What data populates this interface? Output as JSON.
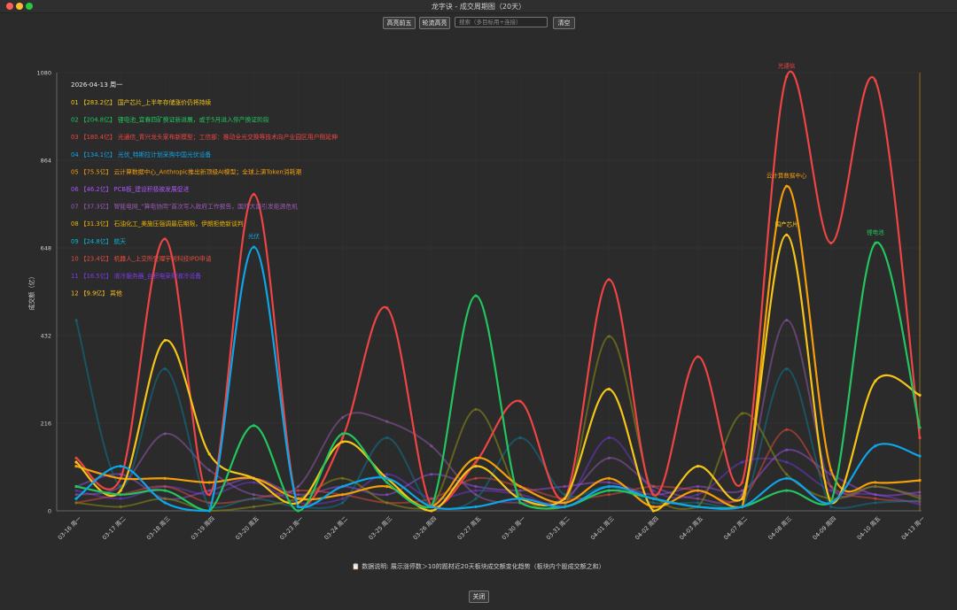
{
  "window": {
    "title": "龙字诀 - 成交周期图（20天）"
  },
  "toolbar": {
    "btn_top5": "高亮前五",
    "btn_cycle": "轮流高亮",
    "search_placeholder": "搜索（多目标用+连接）",
    "btn_clear": "清空"
  },
  "footer": {
    "icon": "📋",
    "note": "数据说明: 展示涨停数＞10的题材近20天板块成交额变化趋势（板块内个股成交额之和）",
    "close": "关闭"
  },
  "chart_data": {
    "type": "line",
    "ylabel": "成交额（亿）",
    "ylim": [
      0,
      1080
    ],
    "yticks": [
      0,
      216,
      432,
      648,
      864,
      1080
    ],
    "x": [
      "03-16 周一",
      "03-17 周二",
      "03-18 周三",
      "03-19 周四",
      "03-20 周五",
      "03-23 周一",
      "03-24 周二",
      "03-25 周三",
      "03-26 周四",
      "03-27 周五",
      "03-30 周一",
      "03-31 周二",
      "04-01 周三",
      "04-02 周四",
      "04-03 周五",
      "04-07 周二",
      "04-08 周三",
      "04-09 周四",
      "04-10 周五",
      "04-13 周一"
    ],
    "tooltip": {
      "date": "2026-04-13 周一",
      "items": [
        {
          "rank": "01",
          "amount": "【283.2亿】",
          "text": "国产芯片_上半年存储涨价仍将持续",
          "color": "#f5c518"
        },
        {
          "rank": "02",
          "amount": "【204.8亿】",
          "text": "锂电池_宜春四矿换证新进展，或于5月进入停产换证阶段",
          "color": "#22c55e"
        },
        {
          "rank": "03",
          "amount": "【180.4亿】",
          "text": "光通信_青兴龙头家布新模型；工信部：推动全光交换等技术向产业园区用户侧延伸",
          "color": "#ef4444"
        },
        {
          "rank": "04",
          "amount": "【134.1亿】",
          "text": "光伏_特斯拉计划采购中国光伏设备",
          "color": "#0ea5e9"
        },
        {
          "rank": "05",
          "amount": "【75.5亿】",
          "text": "云计算数据中心_Anthropic推出新顶级AI模型；全球上演Token消耗潮",
          "color": "#f59e0b"
        },
        {
          "rank": "06",
          "amount": "【46.2亿】",
          "text": "PCB板_建设积极被发展促进",
          "color": "#a855f7"
        },
        {
          "rank": "07",
          "amount": "【37.3亿】",
          "text": "智能电网_“算电协同”首次写入政府工作报告，国外大面引发能源危机",
          "color": "#9b59b6"
        },
        {
          "rank": "08",
          "amount": "【31.3亿】",
          "text": "石油化工_美施压强调最后期限，伊朗拒绝新谈判",
          "color": "#eab308"
        },
        {
          "rank": "09",
          "amount": "【24.8亿】",
          "text": "航天",
          "color": "#06b6d4"
        },
        {
          "rank": "10",
          "amount": "【23.4亿】",
          "text": "机器人_上交所受理宇树科技IPO申请",
          "color": "#e74c3c"
        },
        {
          "rank": "11",
          "amount": "【16.5亿】",
          "text": "液冷服务器_台积电采购液冷设备",
          "color": "#7c3aed"
        },
        {
          "rank": "12",
          "amount": "【9.9亿】",
          "text": "其他",
          "color": "#fbbf24"
        }
      ]
    },
    "series": [
      {
        "name": "光通信",
        "color": "#ef4444",
        "width": 2.2,
        "opacity": 1,
        "values": [
          130,
          80,
          670,
          40,
          780,
          10,
          180,
          500,
          10,
          120,
          270,
          30,
          570,
          40,
          380,
          70,
          1070,
          660,
          1060,
          180
        ],
        "label_at": 16
      },
      {
        "name": "云计算数据中心",
        "color": "#f59e0b",
        "width": 2.2,
        "opacity": 1,
        "values": [
          110,
          80,
          80,
          70,
          80,
          30,
          40,
          60,
          10,
          130,
          60,
          20,
          80,
          10,
          50,
          10,
          800,
          100,
          70,
          75
        ],
        "label_at": 16
      },
      {
        "name": "国产芯片",
        "color": "#f5c518",
        "width": 2.2,
        "opacity": 1,
        "values": [
          120,
          50,
          420,
          140,
          80,
          20,
          170,
          80,
          0,
          110,
          30,
          30,
          300,
          0,
          110,
          30,
          680,
          20,
          320,
          285
        ],
        "label_at": 16
      },
      {
        "name": "锂电池",
        "color": "#22c55e",
        "width": 2.2,
        "opacity": 1,
        "values": [
          60,
          40,
          50,
          0,
          210,
          0,
          190,
          70,
          10,
          530,
          20,
          10,
          50,
          30,
          10,
          10,
          50,
          20,
          660,
          205
        ],
        "label_at": 18
      },
      {
        "name": "光伏",
        "color": "#0ea5e9",
        "width": 2.2,
        "opacity": 1,
        "values": [
          30,
          110,
          20,
          0,
          650,
          10,
          60,
          80,
          10,
          10,
          30,
          10,
          60,
          30,
          10,
          10,
          80,
          20,
          160,
          135
        ],
        "label_at": 4
      },
      {
        "name": "",
        "color": "#7a7a1a",
        "width": 2,
        "opacity": 0.7,
        "values": [
          20,
          10,
          30,
          0,
          10,
          30,
          80,
          20,
          10,
          250,
          40,
          10,
          430,
          40,
          10,
          240,
          90,
          30,
          60,
          31
        ],
        "label_at": 12
      },
      {
        "name": "",
        "color": "#0e7490",
        "width": 2,
        "opacity": 0.55,
        "values": [
          470,
          60,
          350,
          10,
          30,
          10,
          20,
          180,
          10,
          30,
          180,
          40,
          60,
          20,
          20,
          10,
          350,
          10,
          20,
          25
        ],
        "label_at": -1
      },
      {
        "name": "",
        "color": "#9b59b6",
        "width": 2,
        "opacity": 0.5,
        "values": [
          40,
          60,
          190,
          100,
          40,
          60,
          230,
          220,
          160,
          40,
          20,
          30,
          130,
          60,
          30,
          40,
          470,
          60,
          60,
          37
        ],
        "label_at": 16
      },
      {
        "name": "",
        "color": "#7c3aed",
        "width": 2,
        "opacity": 0.45,
        "values": [
          50,
          30,
          60,
          40,
          70,
          20,
          30,
          90,
          30,
          50,
          40,
          20,
          180,
          50,
          40,
          120,
          120,
          50,
          40,
          16
        ],
        "label_at": -1
      },
      {
        "name": "",
        "color": "#e74c3c",
        "width": 2,
        "opacity": 0.5,
        "values": [
          20,
          40,
          60,
          20,
          30,
          50,
          40,
          20,
          30,
          80,
          60,
          30,
          40,
          60,
          50,
          30,
          200,
          60,
          30,
          23
        ],
        "label_at": -1
      },
      {
        "name": "",
        "color": "#a855f7",
        "width": 2,
        "opacity": 0.45,
        "values": [
          60,
          90,
          30,
          50,
          80,
          40,
          60,
          40,
          90,
          60,
          50,
          60,
          70,
          40,
          60,
          50,
          150,
          90,
          40,
          46
        ],
        "label_at": -1
      }
    ]
  }
}
